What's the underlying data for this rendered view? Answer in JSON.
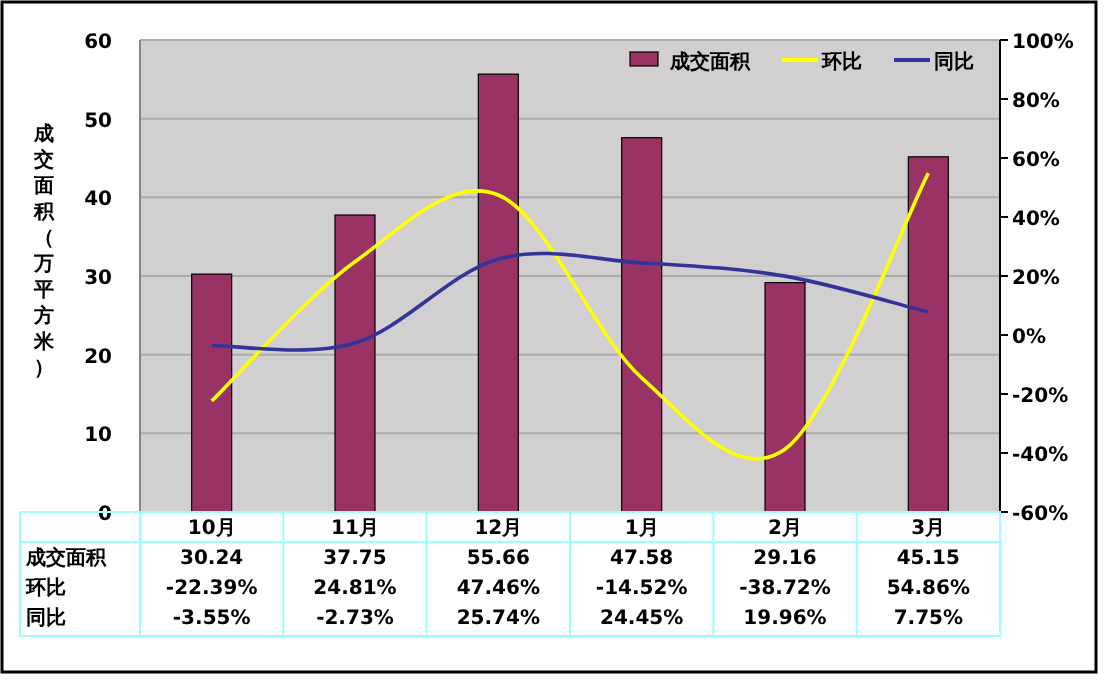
{
  "chart_data": {
    "type": "bar",
    "ylabel": "成交面积（万平方米）",
    "categories": [
      "10月",
      "11月",
      "12月",
      "1月",
      "2月",
      "3月"
    ],
    "series": [
      {
        "name": "成交面积",
        "color": "#993366",
        "values": [
          30.24,
          37.75,
          55.66,
          47.58,
          29.16,
          45.15
        ],
        "value_labels": [
          "30.24",
          "37.75",
          "55.66",
          "47.58",
          "29.16",
          "45.15"
        ]
      },
      {
        "name": "环比",
        "type": "line",
        "axis": "y2",
        "color": "#ffff00",
        "values": [
          -22.39,
          24.81,
          47.46,
          -14.52,
          -38.72,
          54.86
        ],
        "value_labels": [
          "-22.39%",
          "24.81%",
          "47.46%",
          "-14.52%",
          "-38.72%",
          "54.86%"
        ]
      },
      {
        "name": "同比",
        "type": "line",
        "axis": "y2",
        "color": "#333399",
        "values": [
          -3.55,
          -2.73,
          25.74,
          24.45,
          19.96,
          7.75
        ],
        "value_labels": [
          "-3.55%",
          "-2.73%",
          "25.74%",
          "24.45%",
          "19.96%",
          "7.75%"
        ]
      }
    ],
    "ylim": [
      0,
      60
    ],
    "yticks": [
      0,
      10,
      20,
      30,
      40,
      50,
      60
    ],
    "y2lim": [
      -60,
      100
    ],
    "y2ticks": [
      {
        "value": -60,
        "label": "-60%"
      },
      {
        "value": -40,
        "label": "-40%"
      },
      {
        "value": -20,
        "label": "-20%"
      },
      {
        "value": 0,
        "label": "0%"
      },
      {
        "value": 20,
        "label": "20%"
      },
      {
        "value": 40,
        "label": "40%"
      },
      {
        "value": 60,
        "label": "60%"
      },
      {
        "value": 80,
        "label": "80%"
      },
      {
        "value": 100,
        "label": "100%"
      }
    ],
    "grid": "y",
    "legend": "top right"
  }
}
